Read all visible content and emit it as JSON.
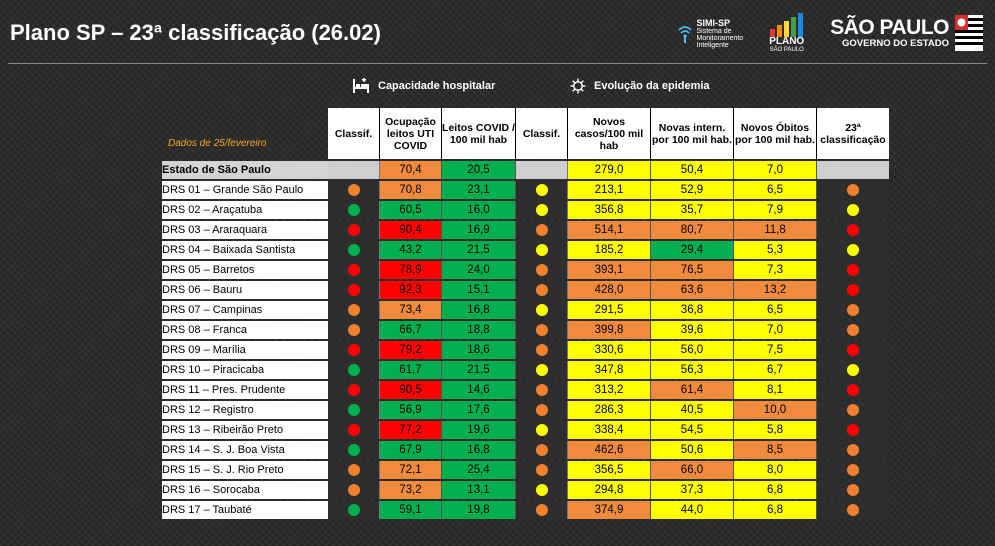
{
  "title": "Plano SP – 23ª classificação (26.02)",
  "logos": {
    "simi_name": "SIMI-SP",
    "simi_sub": [
      "Sistema de",
      "Monitoramento",
      "Inteligente"
    ],
    "plano_name": "PLANO",
    "plano_sub": "SÃO PAULO",
    "sp_line1": "SÃO PAULO",
    "sp_line2": "GOVERNO DO ESTADO"
  },
  "sections": {
    "capacidade": "Capacidade hospitalar",
    "evolucao": "Evolução da epidemia"
  },
  "dados_label": "Dados de 25/fevereiro",
  "headers": {
    "classif1": "Classif.",
    "ocupacao": "Ocupação leitos UTI COVID",
    "leitos": "Leitos COVID / 100 mil hab",
    "classif2": "Classif.",
    "casos": "Novos casos/100 mil hab",
    "intern": "Novas intern. por 100 mil hab.",
    "obitos": "Novos Óbitos por 100 mil hab.",
    "classif23": "23ª classificação"
  },
  "colors": {
    "red": "#ff0000",
    "orange": "#f08a3c",
    "yellow": "#ffff00",
    "green": "#00b050",
    "dot_red": "#ff0000",
    "dot_orange": "#f07f30",
    "dot_yellow": "#ffff00",
    "dot_green": "#00b050"
  },
  "state_row": {
    "name": "Estado de São Paulo",
    "ocupacao": "70,4",
    "ocupacao_color": "orange",
    "leitos": "20,5",
    "leitos_color": "green",
    "casos": "279,0",
    "casos_color": "yellow",
    "intern": "50,4",
    "intern_color": "yellow",
    "obitos": "7,0",
    "obitos_color": "yellow"
  },
  "rows": [
    {
      "name": "DRS 01 – Grande São Paulo",
      "c1": "orange",
      "ocupacao": "70,8",
      "oc": "orange",
      "leitos": "23,1",
      "lc": "green",
      "c2": "yellow",
      "casos": "213,1",
      "cc": "yellow",
      "intern": "52,9",
      "ic": "yellow",
      "obitos": "6,5",
      "obc": "yellow",
      "c23": "orange"
    },
    {
      "name": "DRS 02 – Araçatuba",
      "c1": "green",
      "ocupacao": "60,5",
      "oc": "green",
      "leitos": "16,0",
      "lc": "green",
      "c2": "yellow",
      "casos": "356,8",
      "cc": "yellow",
      "intern": "35,7",
      "ic": "yellow",
      "obitos": "7,9",
      "obc": "yellow",
      "c23": "yellow"
    },
    {
      "name": "DRS 03 – Araraquara",
      "c1": "red",
      "ocupacao": "90,4",
      "oc": "red",
      "leitos": "16,9",
      "lc": "green",
      "c2": "orange",
      "casos": "514,1",
      "cc": "orange",
      "intern": "80,7",
      "ic": "orange",
      "obitos": "11,8",
      "obc": "orange",
      "c23": "red"
    },
    {
      "name": "DRS 04 – Baixada Santista",
      "c1": "green",
      "ocupacao": "43,2",
      "oc": "green",
      "leitos": "21,5",
      "lc": "green",
      "c2": "yellow",
      "casos": "185,2",
      "cc": "yellow",
      "intern": "29,4",
      "ic": "green",
      "obitos": "5,3",
      "obc": "yellow",
      "c23": "yellow"
    },
    {
      "name": "DRS 05 – Barretos",
      "c1": "red",
      "ocupacao": "78,9",
      "oc": "red",
      "leitos": "24,0",
      "lc": "green",
      "c2": "orange",
      "casos": "393,1",
      "cc": "orange",
      "intern": "76,5",
      "ic": "orange",
      "obitos": "7,3",
      "obc": "yellow",
      "c23": "red"
    },
    {
      "name": "DRS 06 – Bauru",
      "c1": "red",
      "ocupacao": "92,3",
      "oc": "red",
      "leitos": "15,1",
      "lc": "green",
      "c2": "orange",
      "casos": "428,0",
      "cc": "orange",
      "intern": "63,6",
      "ic": "orange",
      "obitos": "13,2",
      "obc": "orange",
      "c23": "red"
    },
    {
      "name": "DRS 07 – Campinas",
      "c1": "orange",
      "ocupacao": "73,4",
      "oc": "orange",
      "leitos": "16,8",
      "lc": "green",
      "c2": "yellow",
      "casos": "291,5",
      "cc": "yellow",
      "intern": "36,8",
      "ic": "yellow",
      "obitos": "6,5",
      "obc": "yellow",
      "c23": "orange"
    },
    {
      "name": "DRS 08 – Franca",
      "c1": "orange",
      "ocupacao": "66,7",
      "oc": "green",
      "leitos": "18,8",
      "lc": "green",
      "c2": "orange",
      "casos": "399,8",
      "cc": "orange",
      "intern": "39,6",
      "ic": "yellow",
      "obitos": "7,0",
      "obc": "yellow",
      "c23": "orange"
    },
    {
      "name": "DRS 09 – Marília",
      "c1": "red",
      "ocupacao": "79,2",
      "oc": "red",
      "leitos": "18,6",
      "lc": "green",
      "c2": "orange",
      "casos": "330,6",
      "cc": "yellow",
      "intern": "56,0",
      "ic": "yellow",
      "obitos": "7,5",
      "obc": "yellow",
      "c23": "red"
    },
    {
      "name": "DRS 10 – Piracicaba",
      "c1": "green",
      "ocupacao": "61,7",
      "oc": "green",
      "leitos": "21,5",
      "lc": "green",
      "c2": "yellow",
      "casos": "347,8",
      "cc": "yellow",
      "intern": "56,3",
      "ic": "yellow",
      "obitos": "6,7",
      "obc": "yellow",
      "c23": "yellow"
    },
    {
      "name": "DRS 11 – Pres. Prudente",
      "c1": "red",
      "ocupacao": "90,5",
      "oc": "red",
      "leitos": "14,6",
      "lc": "green",
      "c2": "orange",
      "casos": "313,2",
      "cc": "yellow",
      "intern": "61,4",
      "ic": "orange",
      "obitos": "8,1",
      "obc": "yellow",
      "c23": "red"
    },
    {
      "name": "DRS 12 – Registro",
      "c1": "green",
      "ocupacao": "56,9",
      "oc": "green",
      "leitos": "17,6",
      "lc": "green",
      "c2": "orange",
      "casos": "286,3",
      "cc": "yellow",
      "intern": "40,5",
      "ic": "yellow",
      "obitos": "10,0",
      "obc": "orange",
      "c23": "orange"
    },
    {
      "name": "DRS 13 – Ribeirão Preto",
      "c1": "red",
      "ocupacao": "77,2",
      "oc": "red",
      "leitos": "19,6",
      "lc": "green",
      "c2": "yellow",
      "casos": "338,4",
      "cc": "yellow",
      "intern": "54,5",
      "ic": "yellow",
      "obitos": "5,8",
      "obc": "yellow",
      "c23": "red"
    },
    {
      "name": "DRS 14 – S. J. Boa Vista",
      "c1": "green",
      "ocupacao": "67,9",
      "oc": "green",
      "leitos": "16,8",
      "lc": "green",
      "c2": "orange",
      "casos": "462,6",
      "cc": "orange",
      "intern": "50,6",
      "ic": "yellow",
      "obitos": "8,5",
      "obc": "orange",
      "c23": "orange"
    },
    {
      "name": "DRS 15 – S. J. Rio Preto",
      "c1": "orange",
      "ocupacao": "72,1",
      "oc": "orange",
      "leitos": "25,4",
      "lc": "green",
      "c2": "orange",
      "casos": "356,5",
      "cc": "yellow",
      "intern": "66,0",
      "ic": "orange",
      "obitos": "8,0",
      "obc": "yellow",
      "c23": "orange"
    },
    {
      "name": "DRS 16 – Sorocaba",
      "c1": "orange",
      "ocupacao": "73,2",
      "oc": "orange",
      "leitos": "13,1",
      "lc": "green",
      "c2": "yellow",
      "casos": "294,8",
      "cc": "yellow",
      "intern": "37,3",
      "ic": "yellow",
      "obitos": "6,8",
      "obc": "yellow",
      "c23": "orange"
    },
    {
      "name": "DRS 17 – Taubaté",
      "c1": "green",
      "ocupacao": "59,1",
      "oc": "green",
      "leitos": "19,8",
      "lc": "green",
      "c2": "orange",
      "casos": "374,9",
      "cc": "orange",
      "intern": "44,0",
      "ic": "yellow",
      "obitos": "6,8",
      "obc": "yellow",
      "c23": "orange"
    }
  ]
}
